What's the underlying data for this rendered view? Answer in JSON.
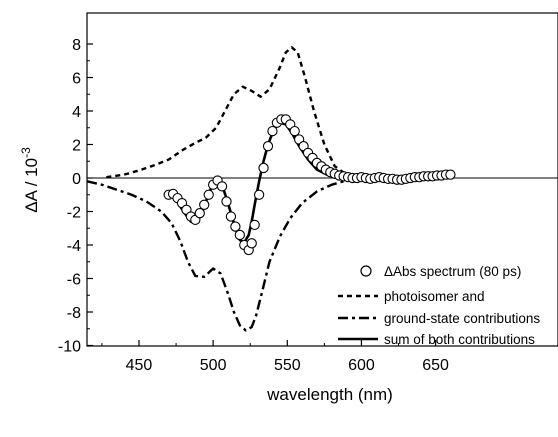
{
  "chart_data": {
    "type": "line",
    "xlabel": "wavelength (nm)",
    "ylabel": {
      "main": "ΔA / 10",
      "sup": "-3"
    },
    "xlim": [
      415,
      662
    ],
    "ylim": [
      -10,
      8.5
    ],
    "xticks": [
      450,
      500,
      550,
      600,
      650
    ],
    "xtick_labels": [
      "450",
      "500",
      "550",
      "600",
      "650"
    ],
    "yticks": [
      -10,
      -8,
      -6,
      -4,
      -2,
      0,
      2,
      4,
      6,
      8
    ],
    "ytick_labels": [
      "-10",
      "-8",
      "-6",
      "-4",
      "-2",
      "0",
      "2",
      "4",
      "6",
      "8"
    ],
    "grid": false,
    "legend_position": "bottom-right",
    "legend": [
      {
        "marker": "circle",
        "text": "ΔAbs spectrum (80 ps)"
      },
      {
        "marker": "dash",
        "text": "photoisomer and"
      },
      {
        "marker": "dashdot",
        "text": "ground-state contributions"
      },
      {
        "marker": "solid",
        "text": "sum of both contributions"
      }
    ],
    "series": [
      {
        "style": "dash",
        "x": [
          428,
          440,
          450,
          460,
          470,
          480,
          487,
          495,
          502,
          508,
          514,
          520,
          526,
          532,
          538,
          545,
          549,
          553,
          557,
          562,
          568,
          575,
          582,
          590,
          600,
          620,
          640,
          662
        ],
        "y": [
          0.05,
          0.2,
          0.45,
          0.75,
          1.1,
          1.7,
          2.05,
          2.4,
          3.0,
          4.0,
          5.0,
          5.45,
          5.2,
          4.85,
          5.3,
          6.6,
          7.5,
          7.8,
          7.5,
          6.0,
          4.0,
          2.0,
          0.7,
          0.2,
          0.05,
          0.0,
          0.0,
          0.0
        ]
      },
      {
        "style": "dashdot",
        "x": [
          415,
          425,
          435,
          445,
          455,
          465,
          472,
          478,
          483,
          488,
          494,
          500,
          505,
          510,
          514,
          518,
          522,
          526,
          529,
          533,
          538,
          545,
          552,
          560,
          570,
          580,
          590,
          600,
          620,
          640,
          662
        ],
        "y": [
          -0.2,
          -0.4,
          -0.7,
          -1.0,
          -1.4,
          -2.0,
          -2.7,
          -3.8,
          -5.0,
          -5.85,
          -5.9,
          -5.4,
          -5.7,
          -6.9,
          -8.0,
          -8.8,
          -9.1,
          -8.9,
          -8.2,
          -6.8,
          -5.0,
          -3.5,
          -2.4,
          -1.5,
          -0.8,
          -0.4,
          -0.15,
          -0.05,
          0.0,
          0.0,
          0.0
        ]
      },
      {
        "style": "solid",
        "x": [
          470,
          475,
          480,
          485,
          488,
          492,
          496,
          500,
          503,
          506,
          510,
          514,
          518,
          521,
          524,
          526,
          528,
          531,
          534,
          537,
          541,
          545,
          549,
          553,
          558,
          564,
          570,
          578,
          586,
          595,
          610,
          630,
          662
        ],
        "y": [
          -1.0,
          -1.3,
          -2.0,
          -2.6,
          -2.7,
          -2.2,
          -1.2,
          -0.3,
          -0.1,
          -0.4,
          -1.5,
          -2.7,
          -3.7,
          -3.85,
          -3.4,
          -2.6,
          -1.6,
          -0.2,
          1.0,
          2.0,
          2.9,
          3.3,
          3.2,
          2.7,
          1.9,
          1.1,
          0.5,
          0.15,
          0.0,
          -0.05,
          0.0,
          0.0,
          0.05
        ]
      },
      {
        "style": "circles",
        "x": [
          470,
          473,
          476,
          479,
          482,
          485,
          488,
          491,
          494,
          497,
          500,
          503,
          506,
          509,
          512,
          515,
          518,
          521,
          524,
          526,
          528,
          531,
          534,
          537,
          540,
          543,
          546,
          549,
          552,
          555,
          558,
          561,
          564,
          567,
          570,
          573,
          576,
          579,
          582,
          585,
          588,
          591,
          594,
          597,
          600,
          603,
          606,
          609,
          612,
          615,
          618,
          621,
          624,
          627,
          630,
          633,
          636,
          639,
          642,
          645,
          648,
          651,
          654,
          657,
          660
        ],
        "y": [
          -1.0,
          -0.95,
          -1.2,
          -1.5,
          -1.9,
          -2.3,
          -2.5,
          -2.1,
          -1.6,
          -1.0,
          -0.4,
          -0.15,
          -0.5,
          -1.4,
          -2.3,
          -2.9,
          -3.4,
          -4.0,
          -4.3,
          -3.9,
          -2.8,
          -1.0,
          0.6,
          1.9,
          2.8,
          3.3,
          3.5,
          3.5,
          3.2,
          2.8,
          2.3,
          1.9,
          1.5,
          1.2,
          0.9,
          0.7,
          0.5,
          0.35,
          0.25,
          0.15,
          0.1,
          0.05,
          0.0,
          0.0,
          0.05,
          0.0,
          -0.05,
          0.0,
          0.05,
          0.0,
          -0.05,
          -0.05,
          -0.1,
          -0.1,
          -0.05,
          0.0,
          0.05,
          0.05,
          0.1,
          0.1,
          0.1,
          0.15,
          0.15,
          0.2,
          0.2
        ]
      }
    ]
  }
}
